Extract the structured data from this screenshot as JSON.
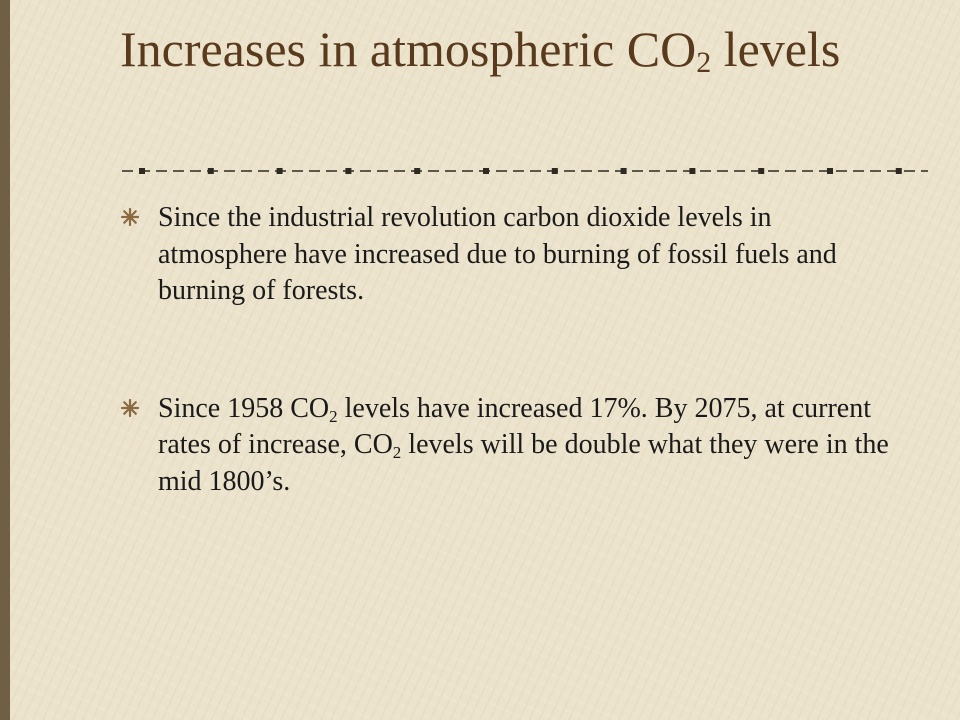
{
  "slide": {
    "title": {
      "part1": "Increases in atmospheric CO",
      "sub": "2",
      "part2": " levels"
    },
    "colors": {
      "background": "#ECE3CC",
      "title": "#5A3A1C",
      "text": "#1A1A1A",
      "accent": "#6E5F45",
      "bullet_icon": "#8B6A42"
    },
    "bullet_icon": "asterisk-bullet-icon",
    "bullets": [
      {
        "text": "Since the industrial revolution carbon dioxide levels in atmosphere have increased due to burning of fossil fuels and burning of forests."
      },
      {
        "seg1": "Since 1958 CO",
        "sub1": "2",
        "seg2": " levels have increased 17%.  By 2075, at current rates of increase, CO",
        "sub2": "2",
        "seg3": " levels will be double what they were in the mid 1800’s."
      }
    ]
  }
}
